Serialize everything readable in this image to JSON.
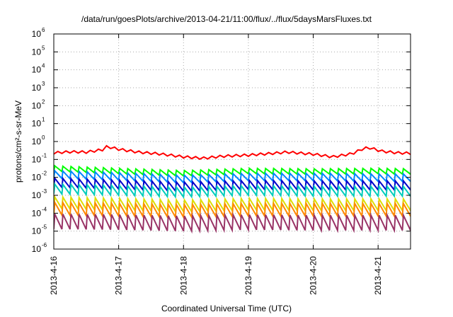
{
  "chart_data": {
    "type": "line",
    "title": "/data/run/goesPlots/archive/2013-04-21/11:00/flux/../flux/5daysMarsFluxes.txt",
    "xlabel": "Coordinated Universal Time (UTC)",
    "ylabel": "protons/cm²-s-sr-MeV",
    "yscale": "log",
    "ylim": [
      1e-06,
      1000000.0
    ],
    "xlim": [
      "2013-04-16",
      "2013-04-21 12:00"
    ],
    "y_ticks": [
      {
        "base": "10",
        "exp": "-6",
        "value": 1e-06
      },
      {
        "base": "10",
        "exp": "-5",
        "value": 1e-05
      },
      {
        "base": "10",
        "exp": "-4",
        "value": 0.0001
      },
      {
        "base": "10",
        "exp": "-3",
        "value": 0.001
      },
      {
        "base": "10",
        "exp": "-2",
        "value": 0.01
      },
      {
        "base": "10",
        "exp": "-1",
        "value": 0.1
      },
      {
        "base": "10",
        "exp": "0",
        "value": 1
      },
      {
        "base": "10",
        "exp": "1",
        "value": 10.0
      },
      {
        "base": "10",
        "exp": "2",
        "value": 100.0
      },
      {
        "base": "10",
        "exp": "3",
        "value": 1000.0
      },
      {
        "base": "10",
        "exp": "4",
        "value": 10000.0
      },
      {
        "base": "10",
        "exp": "5",
        "value": 100000.0
      },
      {
        "base": "10",
        "exp": "6",
        "value": 1000000.0
      }
    ],
    "x_ticks": [
      {
        "label": "2013-4-16",
        "day": 0
      },
      {
        "label": "2013-4-17",
        "day": 1
      },
      {
        "label": "2013-4-18",
        "day": 2
      },
      {
        "label": "2013-4-19",
        "day": 3
      },
      {
        "label": "2013-4-20",
        "day": 4
      },
      {
        "label": "2013-4-21",
        "day": 5
      }
    ],
    "grid": true,
    "series": [
      {
        "color": "#ff0000",
        "sawtooth": false,
        "values": [
          {
            "day": 0.0,
            "y": 0.2
          },
          {
            "day": 0.25,
            "y": 0.23
          },
          {
            "day": 0.5,
            "y": 0.22
          },
          {
            "day": 0.75,
            "y": 0.3
          },
          {
            "day": 0.82,
            "y": 0.45
          },
          {
            "day": 1.0,
            "y": 0.32
          },
          {
            "day": 1.3,
            "y": 0.22
          },
          {
            "day": 1.6,
            "y": 0.18
          },
          {
            "day": 2.0,
            "y": 0.12
          },
          {
            "day": 2.3,
            "y": 0.1
          },
          {
            "day": 2.6,
            "y": 0.13
          },
          {
            "day": 3.0,
            "y": 0.15
          },
          {
            "day": 3.3,
            "y": 0.18
          },
          {
            "day": 3.6,
            "y": 0.22
          },
          {
            "day": 4.0,
            "y": 0.17
          },
          {
            "day": 4.3,
            "y": 0.12
          },
          {
            "day": 4.6,
            "y": 0.18
          },
          {
            "day": 4.75,
            "y": 0.32
          },
          {
            "day": 4.85,
            "y": 0.4
          },
          {
            "day": 5.05,
            "y": 0.25
          },
          {
            "day": 5.3,
            "y": 0.2
          },
          {
            "day": 5.5,
            "y": 0.19
          }
        ]
      },
      {
        "color": "#00ff00",
        "sawtooth": true,
        "peak_factor": 2.0,
        "values": [
          {
            "day": 0.0,
            "y": 0.022
          },
          {
            "day": 1.0,
            "y": 0.016
          },
          {
            "day": 2.0,
            "y": 0.012
          },
          {
            "day": 3.0,
            "y": 0.016
          },
          {
            "day": 4.0,
            "y": 0.015
          },
          {
            "day": 5.0,
            "y": 0.016
          },
          {
            "day": 5.5,
            "y": 0.015
          }
        ]
      },
      {
        "color": "#0088ff",
        "sawtooth": true,
        "peak_factor": 2.6,
        "values": [
          {
            "day": 0.0,
            "y": 0.009
          },
          {
            "day": 1.0,
            "y": 0.007
          },
          {
            "day": 2.0,
            "y": 0.005
          },
          {
            "day": 3.0,
            "y": 0.0065
          },
          {
            "day": 4.0,
            "y": 0.0065
          },
          {
            "day": 5.0,
            "y": 0.006
          },
          {
            "day": 5.5,
            "y": 0.006
          }
        ]
      },
      {
        "color": "#0000cc",
        "sawtooth": true,
        "peak_factor": 3.2,
        "values": [
          {
            "day": 0.0,
            "y": 0.0028
          },
          {
            "day": 1.0,
            "y": 0.0022
          },
          {
            "day": 2.0,
            "y": 0.0017
          },
          {
            "day": 3.0,
            "y": 0.0021
          },
          {
            "day": 4.0,
            "y": 0.002
          },
          {
            "day": 5.0,
            "y": 0.002
          },
          {
            "day": 5.5,
            "y": 0.002
          }
        ]
      },
      {
        "color": "#00ccbb",
        "sawtooth": true,
        "peak_factor": 3.5,
        "values": [
          {
            "day": 0.0,
            "y": 0.0012
          },
          {
            "day": 1.0,
            "y": 0.001
          },
          {
            "day": 2.0,
            "y": 0.0008
          },
          {
            "day": 3.0,
            "y": 0.001
          },
          {
            "day": 4.0,
            "y": 0.0009
          },
          {
            "day": 5.0,
            "y": 0.0009
          },
          {
            "day": 5.5,
            "y": 0.0009
          }
        ]
      },
      {
        "color": "#dddd00",
        "sawtooth": true,
        "peak_factor": 4.5,
        "values": [
          {
            "day": 0.0,
            "y": 0.00018
          },
          {
            "day": 1.0,
            "y": 0.00015
          },
          {
            "day": 2.0,
            "y": 0.00012
          },
          {
            "day": 3.0,
            "y": 0.00015
          },
          {
            "day": 4.0,
            "y": 0.00014
          },
          {
            "day": 5.0,
            "y": 0.00014
          },
          {
            "day": 5.5,
            "y": 0.00014
          }
        ]
      },
      {
        "color": "#ff8800",
        "sawtooth": true,
        "peak_factor": 5.0,
        "values": [
          {
            "day": 0.0,
            "y": 8e-05
          },
          {
            "day": 1.0,
            "y": 7e-05
          },
          {
            "day": 2.0,
            "y": 6e-05
          },
          {
            "day": 3.0,
            "y": 7e-05
          },
          {
            "day": 4.0,
            "y": 7e-05
          },
          {
            "day": 5.0,
            "y": 7e-05
          },
          {
            "day": 5.5,
            "y": 7e-05
          }
        ]
      },
      {
        "color": "#993366",
        "sawtooth": true,
        "peak_factor": 7.0,
        "values": [
          {
            "day": 0.0,
            "y": 1.3e-05
          },
          {
            "day": 1.0,
            "y": 1.2e-05
          },
          {
            "day": 2.0,
            "y": 1e-05
          },
          {
            "day": 3.0,
            "y": 1.2e-05
          },
          {
            "day": 4.0,
            "y": 1.1e-05
          },
          {
            "day": 5.0,
            "y": 1.1e-05
          },
          {
            "day": 5.5,
            "y": 1.1e-05
          }
        ]
      }
    ]
  }
}
